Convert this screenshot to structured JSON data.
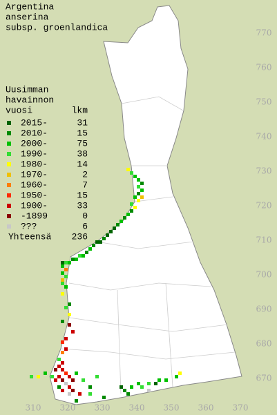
{
  "title": [
    "Argentina",
    "anserina",
    "subsp. groenlandica"
  ],
  "legend": {
    "header": [
      "Uusimman",
      "havainnon",
      "vuosi"
    ],
    "count_header": "lkm",
    "classes": [
      {
        "label": "2015-",
        "count": 31,
        "color": "#006400"
      },
      {
        "label": "2010-",
        "count": 15,
        "color": "#008a00"
      },
      {
        "label": "2000-",
        "count": 75,
        "color": "#00c000"
      },
      {
        "label": "1990-",
        "count": 38,
        "color": "#33dd33"
      },
      {
        "label": "1980-",
        "count": 14,
        "color": "#ffff00"
      },
      {
        "label": "1970-",
        "count": 2,
        "color": "#f0c000"
      },
      {
        "label": "1960-",
        "count": 7,
        "color": "#ff7f00"
      },
      {
        "label": "1950-",
        "count": 15,
        "color": "#ff2a00"
      },
      {
        "label": "1900-",
        "count": 33,
        "color": "#cc0000"
      },
      {
        "label": "-1899",
        "count": 0,
        "color": "#8b0000"
      },
      {
        "label": "???",
        "count": 6,
        "color": "#c8c8c8"
      }
    ],
    "total_label": "Yhteensä",
    "total": 236
  },
  "xticks": [
    310,
    320,
    330,
    340,
    350,
    360,
    370
  ],
  "yticks": [
    670,
    680,
    690,
    700,
    710,
    720,
    730,
    740,
    750,
    760,
    770
  ],
  "points": [
    [
      337,
      730,
      4
    ],
    [
      338,
      729,
      3
    ],
    [
      339,
      728,
      2
    ],
    [
      340,
      727,
      2
    ],
    [
      341,
      726,
      1
    ],
    [
      340,
      725,
      3
    ],
    [
      341,
      724,
      2
    ],
    [
      340,
      723,
      1
    ],
    [
      339,
      722,
      2
    ],
    [
      341,
      722,
      5
    ],
    [
      340,
      721,
      4
    ],
    [
      338,
      720,
      3
    ],
    [
      339,
      719,
      4
    ],
    [
      338,
      718,
      1
    ],
    [
      337,
      717,
      2
    ],
    [
      336,
      716,
      1
    ],
    [
      335,
      715,
      2
    ],
    [
      334,
      714,
      1
    ],
    [
      333,
      713,
      0
    ],
    [
      332,
      712,
      0
    ],
    [
      331,
      711,
      0
    ],
    [
      330,
      710,
      1
    ],
    [
      329,
      709,
      0
    ],
    [
      328,
      709,
      0
    ],
    [
      327,
      708,
      1
    ],
    [
      326,
      707,
      2
    ],
    [
      325,
      706,
      1
    ],
    [
      324,
      705,
      2
    ],
    [
      323,
      705,
      3
    ],
    [
      322,
      704,
      2
    ],
    [
      321,
      704,
      1
    ],
    [
      320,
      703,
      2
    ],
    [
      319,
      703,
      3
    ],
    [
      318,
      703,
      0
    ],
    [
      318,
      702,
      2
    ],
    [
      319,
      701,
      6
    ],
    [
      318,
      700,
      2
    ],
    [
      319,
      699,
      3
    ],
    [
      318,
      698,
      5
    ],
    [
      318,
      697,
      3
    ],
    [
      319,
      696,
      2
    ],
    [
      318,
      694,
      4
    ],
    [
      320,
      691,
      1
    ],
    [
      319,
      690,
      3
    ],
    [
      320,
      688,
      4
    ],
    [
      318,
      686,
      1
    ],
    [
      320,
      685,
      9
    ],
    [
      321,
      683,
      8
    ],
    [
      319,
      681,
      8
    ],
    [
      318,
      680,
      7
    ],
    [
      319,
      678,
      8
    ],
    [
      318,
      677,
      6
    ],
    [
      317,
      675,
      3
    ],
    [
      318,
      674,
      8
    ],
    [
      317,
      673,
      8
    ],
    [
      316,
      672,
      9
    ],
    [
      318,
      672,
      8
    ],
    [
      319,
      671,
      7
    ],
    [
      320,
      670,
      8
    ],
    [
      321,
      669,
      9
    ],
    [
      317,
      670,
      8
    ],
    [
      318,
      669,
      9
    ],
    [
      316,
      669,
      8
    ],
    [
      319,
      668,
      10
    ],
    [
      320,
      667,
      8
    ],
    [
      317,
      667,
      1
    ],
    [
      321,
      666,
      9
    ],
    [
      318,
      666,
      8
    ],
    [
      315,
      670,
      3
    ],
    [
      313,
      671,
      2
    ],
    [
      311,
      670,
      4
    ],
    [
      309,
      670,
      3
    ],
    [
      322,
      671,
      2
    ],
    [
      324,
      669,
      3
    ],
    [
      326,
      667,
      1
    ],
    [
      320,
      665,
      10
    ],
    [
      323,
      665,
      8
    ],
    [
      326,
      665,
      3
    ],
    [
      330,
      664,
      1
    ],
    [
      335,
      667,
      0
    ],
    [
      336,
      666,
      1
    ],
    [
      338,
      667,
      2
    ],
    [
      337,
      665,
      1
    ],
    [
      340,
      668,
      2
    ],
    [
      343,
      668,
      3
    ],
    [
      345,
      668,
      0
    ],
    [
      346,
      669,
      2
    ],
    [
      348,
      669,
      2
    ],
    [
      351,
      670,
      2
    ],
    [
      352,
      671,
      4
    ],
    [
      343,
      666,
      10
    ],
    [
      341,
      667,
      3
    ],
    [
      322,
      663,
      1
    ],
    [
      328,
      670,
      3
    ]
  ]
}
